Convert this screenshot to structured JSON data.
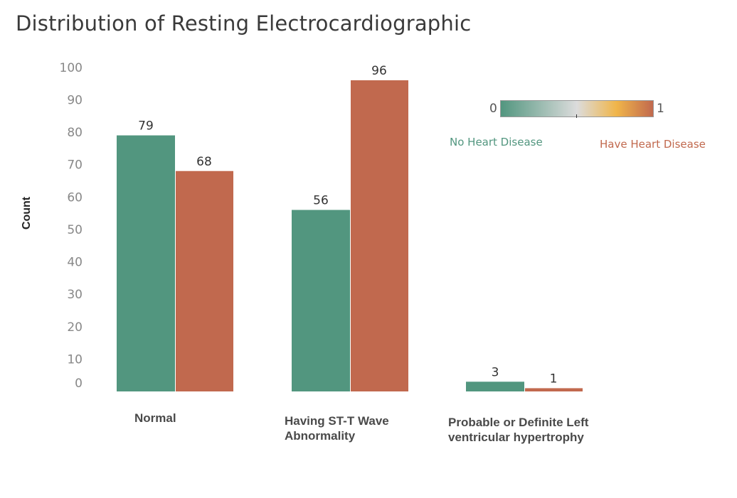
{
  "chart_data": {
    "type": "bar",
    "title": "Distribution of Resting Electrocardiographic",
    "ylabel": "Count",
    "ylim": [
      0,
      100
    ],
    "yticks": [
      0,
      10,
      20,
      30,
      40,
      50,
      60,
      70,
      80,
      90,
      100
    ],
    "categories": [
      [
        "Normal"
      ],
      [
        "Having ST-T Wave",
        "Abnormality"
      ],
      [
        "Probable or Definite Left",
        "ventricular hypertrophy"
      ]
    ],
    "series": [
      {
        "values": [
          79,
          56,
          3
        ],
        "color": "#52967f"
      },
      {
        "values": [
          68,
          96,
          1
        ],
        "color": "#c1694e"
      }
    ],
    "legend": {
      "type": "color-gradient",
      "placement": "top-right",
      "min_label": "0",
      "max_label": "1",
      "min_text": "No Heart Disease",
      "max_text": "Have Heart Disease",
      "min_color": "#52967f",
      "mid_color": "#dcdcdc",
      "high_color": "#f0b54a",
      "max_color": "#c1694e"
    }
  }
}
